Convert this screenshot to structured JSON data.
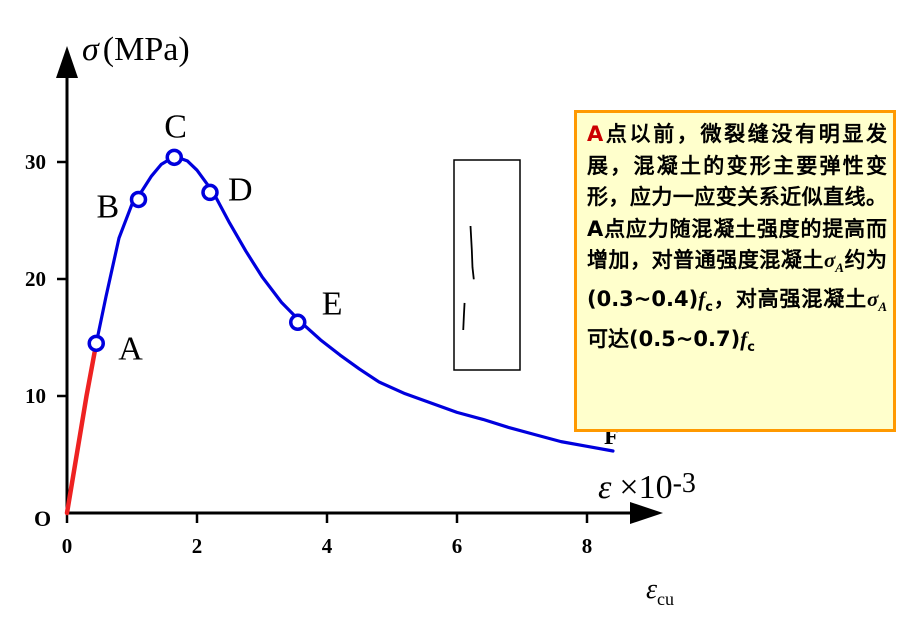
{
  "chart_data": {
    "type": "line",
    "x_symbol": "ε",
    "x_scale": "×10",
    "x_exponent": "-3",
    "y_symbol": "σ",
    "y_unit": "(MPa)",
    "x_ticks": [
      "0",
      "2",
      "4",
      "6",
      "8"
    ],
    "y_ticks": [
      "10",
      "20",
      "30"
    ],
    "xlim": [
      0,
      9
    ],
    "ylim": [
      0,
      40
    ],
    "origin_label": "O",
    "x_end_label": "ε",
    "x_end_sub": "cu",
    "series": [
      {
        "color": "#ee2222",
        "segment": "linear-elastic",
        "x": [
          0,
          0.15,
          0.3,
          0.45
        ],
        "y": [
          0,
          5,
          10,
          14.5
        ]
      },
      {
        "color": "#0000dd",
        "segment": "full-curve",
        "x": [
          0.45,
          0.6,
          0.8,
          1.0,
          1.15,
          1.3,
          1.45,
          1.6,
          1.7,
          1.85,
          2.0,
          2.25,
          2.5,
          2.75,
          3.0,
          3.3,
          3.6,
          3.9,
          4.2,
          4.5,
          4.8,
          5.2,
          5.6,
          6.0,
          6.4,
          6.8,
          7.2,
          7.6,
          8.0,
          8.4
        ],
        "y": [
          14.5,
          18.5,
          23.5,
          26.4,
          27.5,
          28.8,
          29.8,
          30.3,
          30.4,
          30.1,
          29.3,
          27.4,
          24.8,
          22.4,
          20.2,
          18.0,
          16.3,
          14.8,
          13.5,
          12.3,
          11.2,
          10.2,
          9.4,
          8.6,
          8.0,
          7.3,
          6.7,
          6.1,
          5.7,
          5.3
        ]
      }
    ],
    "points": [
      {
        "label": "A",
        "x": 0.45,
        "y": 14.5
      },
      {
        "label": "B",
        "x": 1.1,
        "y": 26.8
      },
      {
        "label": "C",
        "x": 1.65,
        "y": 30.4
      },
      {
        "label": "D",
        "x": 2.2,
        "y": 27.4
      },
      {
        "label": "E",
        "x": 3.55,
        "y": 16.3
      }
    ],
    "end_point_label": "F",
    "specimen": {
      "crack_upper": [
        [
          0.25,
          0.0
        ],
        [
          0.27,
          0.28
        ],
        [
          0.28,
          0.48
        ],
        [
          0.3,
          0.62
        ]
      ],
      "crack_lower": [
        [
          0.16,
          0.74
        ],
        [
          0.15,
          0.86
        ],
        [
          0.14,
          1.0
        ]
      ]
    }
  },
  "note": {
    "lead": "A",
    "body": "点以前，微裂缝没有明显发展，混凝土的变形主要弹性变形，应力一应变关系近似直线。A点应力随混凝土强度的提高而增加，对普通强度混凝土",
    "sym1": "σ",
    "sym1_sub": "A",
    "part2": "约为 (0.3~0.4)",
    "fc1": "f",
    "fc1_sub": "c",
    "part3": "，对高强混凝土",
    "sym2": "σ",
    "sym2_sub": "A",
    "part4": "可达(0.5~0.7)",
    "fc2": "f",
    "fc2_sub": "c"
  }
}
